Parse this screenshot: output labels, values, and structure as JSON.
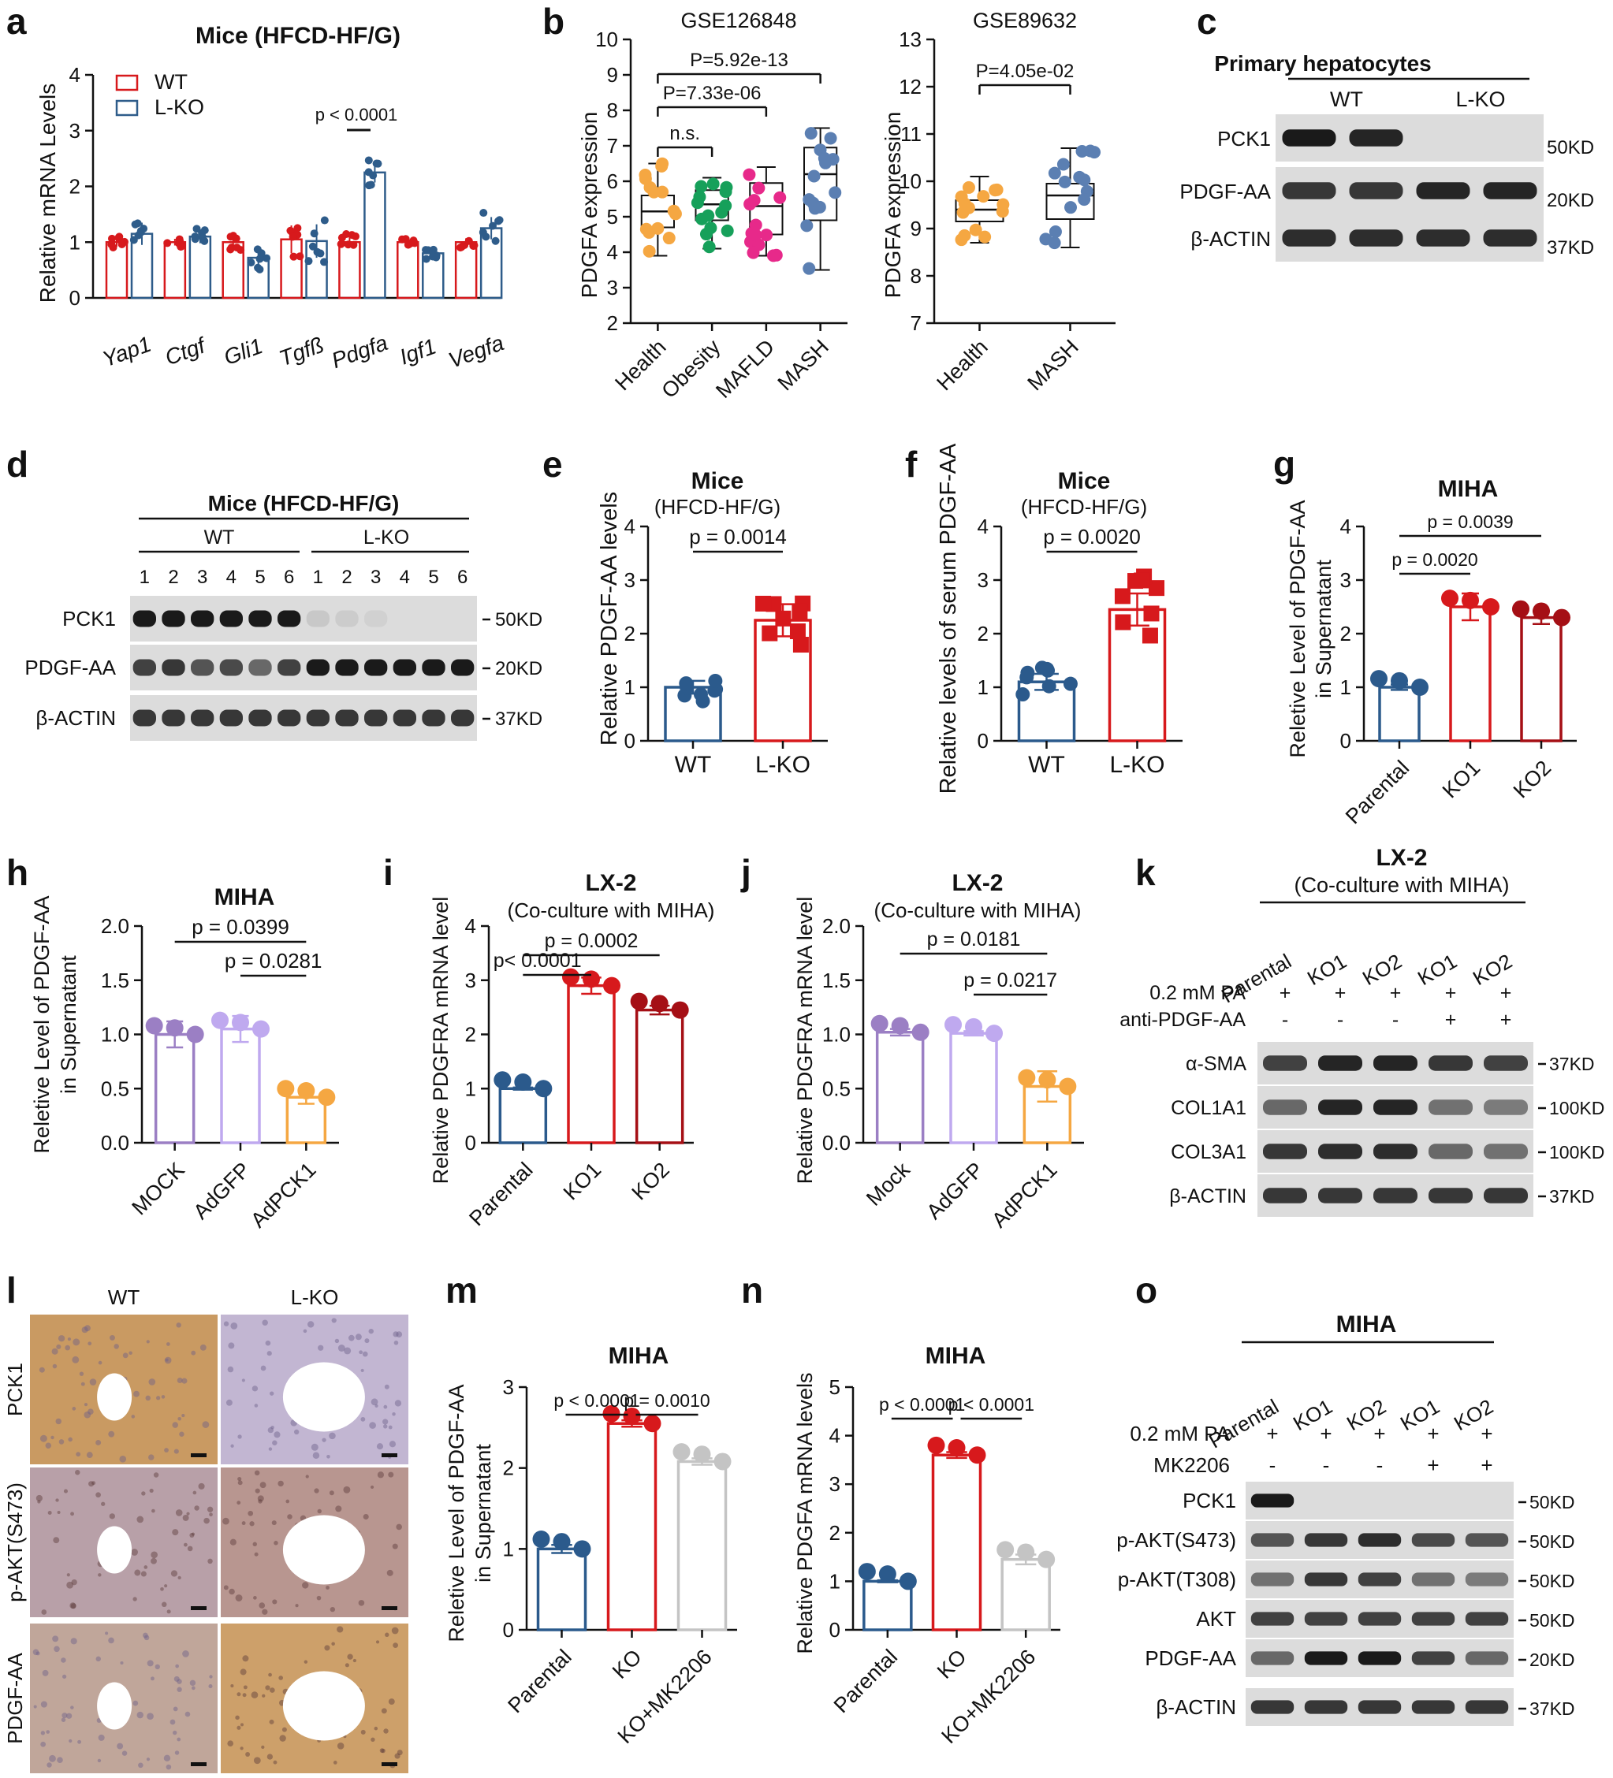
{
  "panel_letters": [
    "a",
    "b",
    "c",
    "d",
    "e",
    "f",
    "g",
    "h",
    "i",
    "j",
    "k",
    "l",
    "m",
    "n",
    "o"
  ],
  "colors": {
    "wt": "#e8202a",
    "lko": "#2e5c8a",
    "red": "#d7191c",
    "darkred": "#a50f15",
    "blue": "#2b5a8c",
    "purple": "#9b7fc4",
    "lavender": "#bfa9ef",
    "orange": "#f5a742",
    "gray": "#c4c4c4",
    "green": "#16a05a",
    "magenta": "#e7298a",
    "steel": "#5b7fb2",
    "blot_bg": "#dcdcdc",
    "band": "#1a1a1a"
  },
  "a": {
    "title": "Mice (HFCD-HF/G)",
    "ylabel": "Relative mRNA  Levels",
    "legend": [
      "WT",
      "L-KO"
    ],
    "yticks": [
      "0",
      "1",
      "2",
      "3",
      "4"
    ],
    "pvalue": "p < 0.0001",
    "chart_data": {
      "type": "bar",
      "title": "Mice (HFCD-HF/G)",
      "ylabel": "Relative mRNA  Levels",
      "ylim": [
        0,
        4
      ],
      "categories": [
        "Yap1",
        "Ctgf",
        "Gli1",
        "Tgfß",
        "Pdgfa",
        "Igf1",
        "Vegfa"
      ],
      "series": [
        {
          "name": "WT",
          "values": [
            1.0,
            1.0,
            1.0,
            1.05,
            1.0,
            1.0,
            1.0
          ],
          "err": [
            0.08,
            0.06,
            0.1,
            0.25,
            0.1,
            0.05,
            0.07
          ]
        },
        {
          "name": "L-KO",
          "values": [
            1.15,
            1.1,
            0.72,
            1.02,
            2.25,
            0.8,
            1.25
          ],
          "err": [
            0.2,
            0.12,
            0.15,
            0.3,
            0.18,
            0.08,
            0.2
          ]
        }
      ]
    }
  },
  "b": {
    "ylabel": "PDGFA expression",
    "left": {
      "title": "GSE126848",
      "yticks": [
        "2",
        "3",
        "4",
        "5",
        "6",
        "7",
        "8",
        "9",
        "10"
      ],
      "p1": "P=5.92e-13",
      "p2": "P=7.33e-06",
      "p3": "n.s.",
      "chart_data": {
        "type": "box",
        "categories": [
          "Health",
          "Obesity",
          "MAFLD",
          "MASH"
        ],
        "ylim": [
          2,
          10
        ],
        "medians": [
          5.15,
          5.35,
          5.3,
          6.2
        ],
        "q1": [
          4.7,
          4.9,
          4.5,
          4.9
        ],
        "q3": [
          5.6,
          5.75,
          5.95,
          6.95
        ],
        "whisker_low": [
          3.9,
          4.1,
          3.9,
          3.5
        ],
        "whisker_high": [
          6.5,
          6.1,
          6.4,
          7.5
        ]
      }
    },
    "right": {
      "title": "GSE89632",
      "yticks": [
        "7",
        "8",
        "9",
        "10",
        "11",
        "12",
        "13"
      ],
      "p1": "P=4.05e-02",
      "chart_data": {
        "type": "box",
        "categories": [
          "Health",
          "MASH"
        ],
        "ylim": [
          7,
          13
        ],
        "medians": [
          9.4,
          9.7
        ],
        "q1": [
          9.15,
          9.2
        ],
        "q3": [
          9.6,
          9.95
        ],
        "whisker_low": [
          8.7,
          8.6
        ],
        "whisker_high": [
          10.1,
          10.7
        ]
      }
    }
  },
  "c": {
    "title": "Primary hepatocytes",
    "groups": [
      "WT",
      "L-KO"
    ],
    "rows": [
      "PCK1",
      "PDGF-AA",
      "β-ACTIN"
    ],
    "sizes": [
      "50KD",
      "20KD",
      "37KD"
    ]
  },
  "d": {
    "title": "Mice (HFCD-HF/G)",
    "groups": [
      "WT",
      "L-KO"
    ],
    "lanes": [
      "1",
      "2",
      "3",
      "4",
      "5",
      "6",
      "1",
      "2",
      "3",
      "4",
      "5",
      "6"
    ],
    "rows": [
      "PCK1",
      "PDGF-AA",
      "β-ACTIN"
    ],
    "sizes": [
      "50KD",
      "20KD",
      "37KD"
    ]
  },
  "e": {
    "title": "Mice",
    "subtitle": "(HFCD-HF/G)",
    "pvalue": "p = 0.0014",
    "ylabel": "Relative PDGF-AA levels",
    "yticks": [
      "0",
      "1",
      "2",
      "3",
      "4"
    ],
    "chart_data": {
      "type": "bar",
      "categories": [
        "WT",
        "L-KO"
      ],
      "values": [
        1.0,
        2.25
      ],
      "err": [
        0.12,
        0.3
      ],
      "ylim": [
        0,
        4
      ]
    }
  },
  "f": {
    "title": "Mice",
    "subtitle": "(HFCD-HF/G)",
    "pvalue": "p = 0.0020",
    "ylabel": "Relative levels of serum PDGF-AA",
    "yticks": [
      "0",
      "1",
      "2",
      "3",
      "4"
    ],
    "chart_data": {
      "type": "bar",
      "categories": [
        "WT",
        "L-KO"
      ],
      "values": [
        1.1,
        2.45
      ],
      "err": [
        0.15,
        0.3
      ],
      "ylim": [
        0,
        4
      ]
    }
  },
  "g": {
    "title": "MIHA",
    "p1": "p = 0.0039",
    "p2": "p = 0.0020",
    "ylabel1": "Reletive Level of PDGF-AA",
    "ylabel2": "in Supernatant",
    "yticks": [
      "0",
      "1",
      "2",
      "3",
      "4"
    ],
    "chart_data": {
      "type": "bar",
      "categories": [
        "Parental",
        "KO1",
        "KO2"
      ],
      "values": [
        1.0,
        2.5,
        2.3
      ],
      "err": [
        0.05,
        0.25,
        0.12
      ],
      "ylim": [
        0,
        4
      ]
    }
  },
  "h": {
    "title": "MIHA",
    "p1": "p = 0.0399",
    "p2": "p = 0.0281",
    "ylabel1": "Reletive Level of PDGF-AA",
    "ylabel2": "in Supernatant",
    "yticks": [
      "0.0",
      "0.5",
      "1.0",
      "1.5",
      "2.0"
    ],
    "chart_data": {
      "type": "bar",
      "categories": [
        "MOCK",
        "AdGFP",
        "AdPCK1"
      ],
      "values": [
        1.0,
        1.05,
        0.42
      ],
      "err": [
        0.12,
        0.12,
        0.06
      ],
      "ylim": [
        0,
        2
      ]
    }
  },
  "i": {
    "title": "LX-2",
    "subtitle": "(Co-culture with MIHA)",
    "p1": "p = 0.0002",
    "p2": "p< 0.0001",
    "ylabel": "Relative PDGFRA mRNA level",
    "yticks": [
      "0",
      "1",
      "2",
      "3",
      "4"
    ],
    "chart_data": {
      "type": "bar",
      "categories": [
        "Parental",
        "KO1",
        "KO2"
      ],
      "values": [
        1.0,
        2.9,
        2.45
      ],
      "err": [
        0.02,
        0.15,
        0.08
      ],
      "ylim": [
        0,
        4
      ]
    }
  },
  "j": {
    "title": "LX-2",
    "subtitle": "(Co-culture with MIHA)",
    "p1": "p = 0.0181",
    "p2": "p = 0.0217",
    "ylabel": "Relative PDGFRA mRNA level",
    "yticks": [
      "0.0",
      "0.5",
      "1.0",
      "1.5",
      "2.0"
    ],
    "chart_data": {
      "type": "bar",
      "categories": [
        "Mock",
        "AdGFP",
        "AdPCK1"
      ],
      "values": [
        1.02,
        1.01,
        0.52
      ],
      "err": [
        0.03,
        0.02,
        0.14
      ],
      "ylim": [
        0,
        2
      ]
    }
  },
  "k": {
    "title": "LX-2",
    "subtitle": "(Co-culture with MIHA)",
    "lanes": [
      "Parental",
      "KO1",
      "KO2",
      "KO1",
      "KO2"
    ],
    "treat1": "0.2 mM PA",
    "treat1_signs": [
      "+",
      "+",
      "+",
      "+",
      "+"
    ],
    "treat2": "anti-PDGF-AA",
    "treat2_signs": [
      "-",
      "-",
      "-",
      "+",
      "+"
    ],
    "rows": [
      "α-SMA",
      "COL1A1",
      "COL3A1",
      "β-ACTIN"
    ],
    "sizes": [
      "37KD",
      "100KD",
      "100KD",
      "37KD"
    ]
  },
  "l": {
    "cols": [
      "WT",
      "L-KO"
    ],
    "rows": [
      "PCK1",
      "p-AKT(S473)",
      "PDGF-AA"
    ]
  },
  "m": {
    "title": "MIHA",
    "p1": "p < 0.0001",
    "p2": "p = 0.0010",
    "ylabel1": "Reletive Level of PDGF-AA",
    "ylabel2": "in Supernatant",
    "yticks": [
      "0",
      "1",
      "2",
      "3"
    ],
    "chart_data": {
      "type": "bar",
      "categories": [
        "Parental",
        "KO",
        "KO+MK2206"
      ],
      "values": [
        1.0,
        2.55,
        2.08
      ],
      "err": [
        0.05,
        0.04,
        0.04
      ],
      "ylim": [
        0,
        3
      ]
    }
  },
  "n": {
    "title": "MIHA",
    "p1": "p < 0.0001",
    "p2": "p < 0.0001",
    "ylabel": "Relative PDGFA mRNA  levels",
    "yticks": [
      "0",
      "1",
      "2",
      "3",
      "4",
      "5"
    ],
    "chart_data": {
      "type": "bar",
      "categories": [
        "Parental",
        "KO",
        "KO+MK2206"
      ],
      "values": [
        1.0,
        3.6,
        1.45
      ],
      "err": [
        0.02,
        0.06,
        0.1
      ],
      "ylim": [
        0,
        5
      ]
    }
  },
  "o": {
    "title": "MIHA",
    "lanes": [
      "Parental",
      "KO1",
      "KO2",
      "KO1",
      "KO2"
    ],
    "treat1": "0.2 mM PA",
    "treat1_signs": [
      "+",
      "+",
      "+",
      "+",
      "+"
    ],
    "treat2": "MK2206",
    "treat2_signs": [
      "-",
      "-",
      "-",
      "+",
      "+"
    ],
    "rows": [
      "PCK1",
      "p-AKT(S473)",
      "p-AKT(T308)",
      "AKT",
      "PDGF-AA",
      "β-ACTIN"
    ],
    "sizes": [
      "50KD",
      "50KD",
      "50KD",
      "50KD",
      "20KD",
      "37KD"
    ]
  }
}
